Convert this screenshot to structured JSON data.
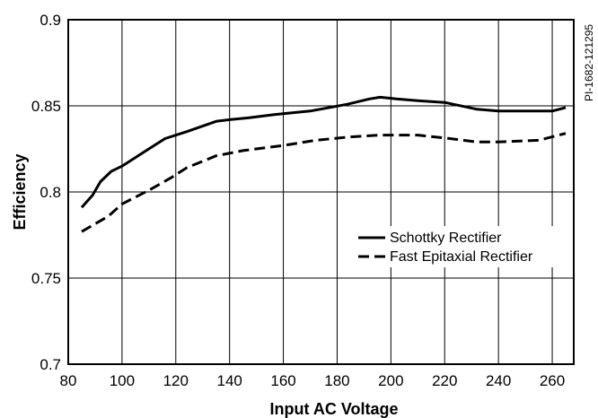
{
  "chart_data": {
    "type": "line",
    "title": "",
    "xlabel": "Input AC Voltage",
    "ylabel": "Efficiency",
    "side_label": "PI-1682-121295",
    "xlim": [
      80,
      268
    ],
    "ylim": [
      0.7,
      0.9
    ],
    "x_ticks": [
      80,
      100,
      120,
      140,
      160,
      180,
      200,
      220,
      240,
      260
    ],
    "x_tick_labels": [
      "80",
      "100",
      "120",
      "140",
      "160",
      "180",
      "200",
      "220",
      "240",
      "260"
    ],
    "y_ticks": [
      0.7,
      0.75,
      0.8,
      0.85,
      0.9
    ],
    "y_tick_labels": [
      "0.7",
      "0.75",
      "0.8",
      "0.85",
      "0.9"
    ],
    "grid": true,
    "legend_position": "center-right",
    "series": [
      {
        "name": "Schottky Rectifier",
        "style": "solid",
        "color": "#000000",
        "x": [
          85,
          89,
          92,
          96,
          100,
          108,
          116,
          124,
          135,
          140,
          147,
          157,
          170,
          184,
          192,
          196,
          202,
          210,
          220,
          232,
          240,
          250,
          260,
          265
        ],
        "y": [
          0.791,
          0.798,
          0.806,
          0.812,
          0.815,
          0.823,
          0.831,
          0.835,
          0.841,
          0.842,
          0.843,
          0.845,
          0.847,
          0.851,
          0.854,
          0.855,
          0.854,
          0.853,
          0.852,
          0.848,
          0.847,
          0.847,
          0.847,
          0.849
        ]
      },
      {
        "name": "Fast Epitaxial Rectifier",
        "style": "dashed",
        "color": "#000000",
        "x": [
          85,
          95,
          100,
          110,
          118,
          124,
          135,
          145,
          160,
          172,
          185,
          196,
          210,
          222,
          232,
          240,
          255,
          265
        ],
        "y": [
          0.777,
          0.786,
          0.793,
          0.801,
          0.808,
          0.814,
          0.821,
          0.824,
          0.827,
          0.83,
          0.832,
          0.833,
          0.833,
          0.831,
          0.829,
          0.829,
          0.83,
          0.834
        ]
      }
    ]
  }
}
